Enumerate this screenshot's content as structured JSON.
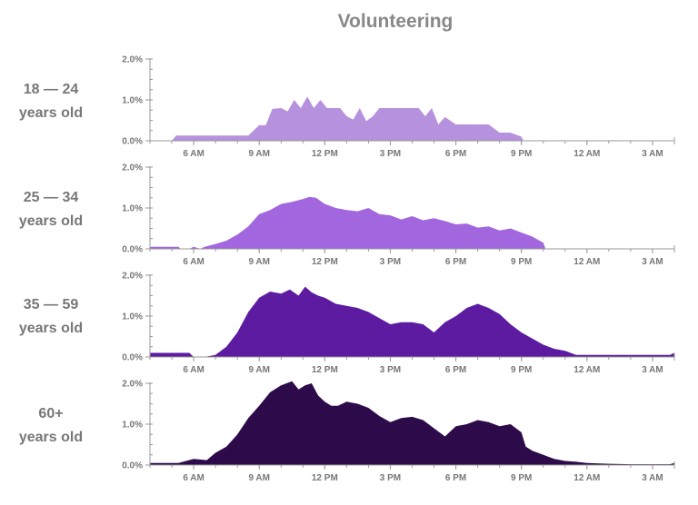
{
  "chart_data": {
    "type": "area",
    "title": "Volunteering",
    "xlabel": "",
    "ylabel": "",
    "x_tick_labels": [
      "6 AM",
      "9 AM",
      "12 PM",
      "3 PM",
      "6 PM",
      "9 PM",
      "12 AM",
      "3 AM"
    ],
    "x_tick_hours": [
      6,
      9,
      12,
      15,
      18,
      21,
      24,
      27
    ],
    "xlim": [
      4,
      28
    ],
    "y_tick_labels": [
      "0.0%",
      "1.0%",
      "2.0%"
    ],
    "ylim": [
      0,
      2.0
    ],
    "series": [
      {
        "name": "18 — 24 years old",
        "label_line1": "18 — 24",
        "label_line2": "years old",
        "color": "#b691de",
        "x": [
          4,
          5.0,
          5.2,
          5.5,
          6,
          6.5,
          7,
          7.5,
          8,
          8.5,
          9,
          9.3,
          9.6,
          10.0,
          10.3,
          10.6,
          10.9,
          11.2,
          11.5,
          11.8,
          12.1,
          12.4,
          12.7,
          13.0,
          13.3,
          13.6,
          13.9,
          14.2,
          14.5,
          14.8,
          15.1,
          15.4,
          15.7,
          16.0,
          16.3,
          16.6,
          16.9,
          17.2,
          17.5,
          18,
          18.5,
          19,
          19.5,
          20,
          20.5,
          21,
          21.1,
          22,
          24,
          26,
          28
        ],
        "y": [
          0,
          0,
          0.13,
          0.13,
          0.13,
          0.13,
          0.13,
          0.13,
          0.13,
          0.13,
          0.38,
          0.38,
          0.78,
          0.8,
          0.72,
          1.0,
          0.8,
          1.08,
          0.8,
          1.0,
          0.8,
          0.8,
          0.8,
          0.6,
          0.52,
          0.8,
          0.48,
          0.6,
          0.8,
          0.8,
          0.8,
          0.8,
          0.8,
          0.8,
          0.8,
          0.6,
          0.8,
          0.4,
          0.58,
          0.4,
          0.4,
          0.4,
          0.4,
          0.2,
          0.2,
          0.1,
          0,
          0,
          0,
          0,
          0
        ]
      },
      {
        "name": "25 — 34 years old",
        "label_line1": "25 — 34",
        "label_line2": "years old",
        "color": "#a266de",
        "x": [
          4,
          5.3,
          5.4,
          5.8,
          6,
          6.3,
          6.5,
          7,
          7.5,
          8,
          8.5,
          9,
          9.5,
          10,
          10.5,
          11,
          11.3,
          11.6,
          12,
          12.5,
          13,
          13.5,
          14,
          14.5,
          15,
          15.5,
          16,
          16.5,
          17,
          17.5,
          18,
          18.5,
          19,
          19.5,
          20,
          20.5,
          21,
          21.5,
          22,
          22.1,
          24,
          26,
          28
        ],
        "y": [
          0.05,
          0.05,
          0,
          0,
          0.05,
          0,
          0.05,
          0.12,
          0.2,
          0.35,
          0.55,
          0.85,
          0.95,
          1.1,
          1.15,
          1.22,
          1.27,
          1.25,
          1.1,
          1.0,
          0.95,
          0.92,
          1.0,
          0.85,
          0.82,
          0.72,
          0.8,
          0.7,
          0.75,
          0.68,
          0.6,
          0.62,
          0.52,
          0.55,
          0.45,
          0.5,
          0.4,
          0.3,
          0.15,
          0,
          0,
          0,
          0
        ]
      },
      {
        "name": "35 — 59 years old",
        "label_line1": "35 — 59",
        "label_line2": "years old",
        "color": "#5c1ba1",
        "x": [
          4,
          5.8,
          6,
          6.5,
          7,
          7.5,
          8,
          8.5,
          9,
          9.5,
          10,
          10.4,
          10.8,
          11.1,
          11.4,
          11.7,
          12,
          12.5,
          13,
          13.5,
          14,
          14.5,
          15,
          15.5,
          16,
          16.5,
          17,
          17.5,
          18,
          18.5,
          19,
          19.5,
          20,
          20.5,
          21,
          21.5,
          22,
          22.5,
          23,
          23.5,
          24,
          25,
          26,
          27,
          27.8,
          28
        ],
        "y": [
          0.1,
          0.1,
          0,
          0,
          0.05,
          0.25,
          0.6,
          1.1,
          1.45,
          1.6,
          1.55,
          1.65,
          1.5,
          1.72,
          1.58,
          1.5,
          1.45,
          1.3,
          1.25,
          1.2,
          1.1,
          0.95,
          0.8,
          0.85,
          0.85,
          0.8,
          0.6,
          0.85,
          1.0,
          1.2,
          1.3,
          1.2,
          1.05,
          0.8,
          0.6,
          0.45,
          0.3,
          0.2,
          0.15,
          0.05,
          0.05,
          0.05,
          0.05,
          0.05,
          0.05,
          0.1
        ]
      },
      {
        "name": "60+ years old",
        "label_line1": "60+",
        "label_line2": "years old",
        "color": "#2d0a4a",
        "x": [
          4,
          5.3,
          6,
          6.6,
          7,
          7.5,
          8,
          8.5,
          9,
          9.5,
          10,
          10.5,
          10.8,
          11.1,
          11.4,
          11.7,
          12,
          12.3,
          12.6,
          13,
          13.5,
          14,
          14.5,
          15,
          15.5,
          16,
          16.5,
          17,
          17.5,
          18,
          18.5,
          19,
          19.5,
          20,
          20.5,
          21,
          21.2,
          21.5,
          22,
          22.5,
          23,
          23.5,
          24,
          25,
          26,
          27,
          27.8,
          28
        ],
        "y": [
          0.05,
          0.05,
          0.15,
          0.12,
          0.3,
          0.45,
          0.75,
          1.15,
          1.45,
          1.78,
          1.95,
          2.05,
          1.85,
          1.95,
          2.0,
          1.7,
          1.55,
          1.45,
          1.45,
          1.55,
          1.5,
          1.4,
          1.2,
          1.05,
          1.15,
          1.18,
          1.1,
          0.9,
          0.7,
          0.95,
          1.0,
          1.1,
          1.05,
          0.95,
          1.0,
          0.8,
          0.45,
          0.35,
          0.25,
          0.15,
          0.1,
          0.08,
          0.05,
          0.03,
          0.02,
          0.02,
          0.02,
          0.05
        ]
      }
    ]
  }
}
